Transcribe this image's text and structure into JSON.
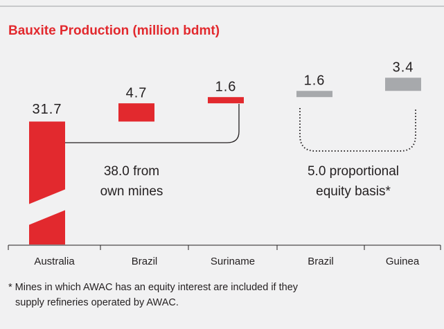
{
  "chart_data": {
    "type": "floating-bar",
    "title": "Bauxite Production (million bdmt)",
    "categories": [
      "Australia",
      "Brazil",
      "Suriname",
      "Brazil",
      "Guinea"
    ],
    "values": [
      31.7,
      4.7,
      1.6,
      1.6,
      3.4
    ],
    "colors": [
      "#e2292e",
      "#e2292e",
      "#e2292e",
      "#a7a9ac",
      "#a7a9ac"
    ],
    "annotations": [
      {
        "lines": [
          "38.0 from",
          "own mines"
        ]
      },
      {
        "lines": [
          "5.0 proportional",
          "equity basis*"
        ]
      }
    ],
    "footnote": [
      "* Mines in which AWAC has an equity interest are included if they",
      "supply refineries operated by AWAC."
    ]
  }
}
